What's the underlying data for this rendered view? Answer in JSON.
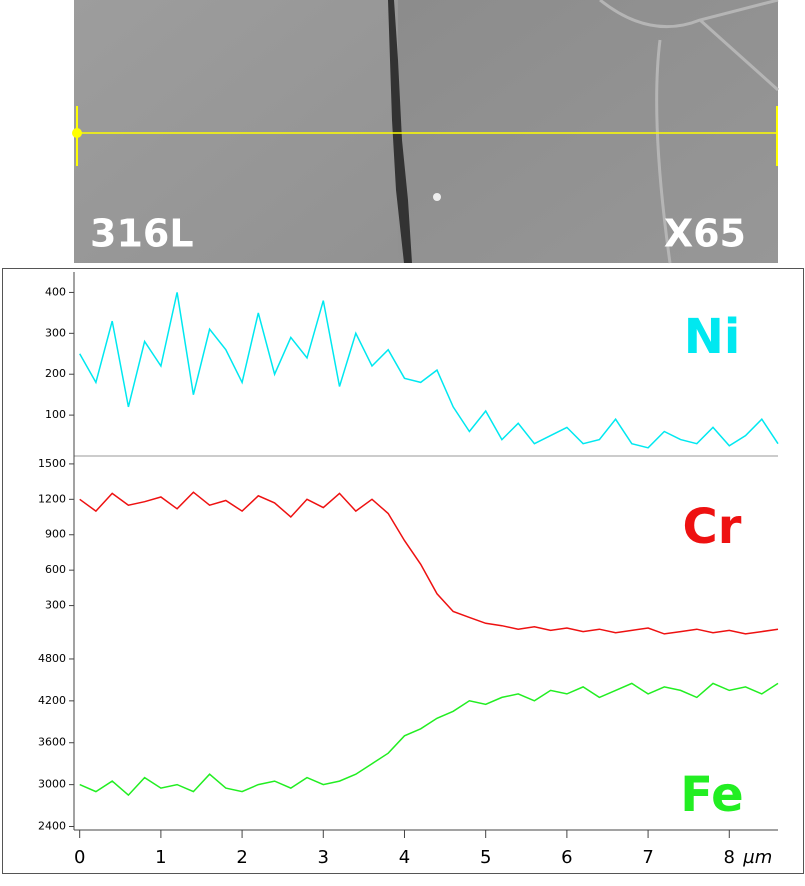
{
  "image": {
    "labels": [
      "316L",
      "X65"
    ]
  },
  "chart_data": {
    "type": "line",
    "x": [
      0,
      0.2,
      0.4,
      0.6,
      0.8,
      1,
      1.2,
      1.4,
      1.6,
      1.8,
      2,
      2.2,
      2.4,
      2.6,
      2.8,
      3,
      3.2,
      3.4,
      3.6,
      3.8,
      4,
      4.2,
      4.4,
      4.6,
      4.8,
      5,
      5.2,
      5.4,
      5.6,
      5.8,
      6,
      6.2,
      6.4,
      6.6,
      6.8,
      7,
      7.2,
      7.4,
      7.6,
      7.8,
      8,
      8.2,
      8.4,
      8.6
    ],
    "xlim": [
      -0.07,
      8.6
    ],
    "xticks": [
      0,
      1,
      2,
      3,
      4,
      5,
      6,
      7,
      8
    ],
    "x_label": "µm",
    "panels": [
      {
        "ylim": [
          0,
          450
        ],
        "yticks": [
          100,
          200,
          300,
          400
        ],
        "series": [
          {
            "name": "Ni",
            "color": "#00e8f0",
            "values": [
              250,
              180,
              330,
              120,
              280,
              220,
              400,
              150,
              310,
              260,
              180,
              350,
              200,
              290,
              240,
              380,
              170,
              300,
              220,
              260,
              190,
              180,
              210,
              120,
              60,
              110,
              40,
              80,
              30,
              50,
              70,
              30,
              40,
              90,
              30,
              20,
              60,
              40,
              30,
              70,
              25,
              50,
              90,
              30
            ]
          }
        ]
      },
      {
        "ylim": [
          0,
          1550
        ],
        "yticks": [
          300,
          600,
          900,
          1200,
          1500
        ],
        "series": [
          {
            "name": "Cr",
            "color": "#ee1111",
            "values": [
              1200,
              1100,
              1250,
              1150,
              1180,
              1220,
              1120,
              1260,
              1150,
              1190,
              1100,
              1230,
              1170,
              1050,
              1200,
              1130,
              1250,
              1100,
              1200,
              1080,
              850,
              650,
              400,
              250,
              200,
              150,
              130,
              100,
              120,
              90,
              110,
              80,
              100,
              70,
              90,
              110,
              60,
              80,
              100,
              70,
              90,
              60,
              80,
              100
            ]
          }
        ]
      },
      {
        "ylim": [
          2350,
          5000
        ],
        "yticks": [
          2400,
          3000,
          3600,
          4200,
          4800
        ],
        "series": [
          {
            "name": "Fe",
            "color": "#22ee22",
            "values": [
              3000,
              2900,
              3050,
              2850,
              3100,
              2950,
              3000,
              2900,
              3150,
              2950,
              2900,
              3000,
              3050,
              2950,
              3100,
              3000,
              3050,
              3150,
              3300,
              3450,
              3700,
              3800,
              3950,
              4050,
              4200,
              4150,
              4250,
              4300,
              4200,
              4350,
              4300,
              4400,
              4250,
              4350,
              4450,
              4300,
              4400,
              4350,
              4250,
              4450,
              4350,
              4400,
              4300,
              4450
            ]
          }
        ]
      }
    ]
  }
}
